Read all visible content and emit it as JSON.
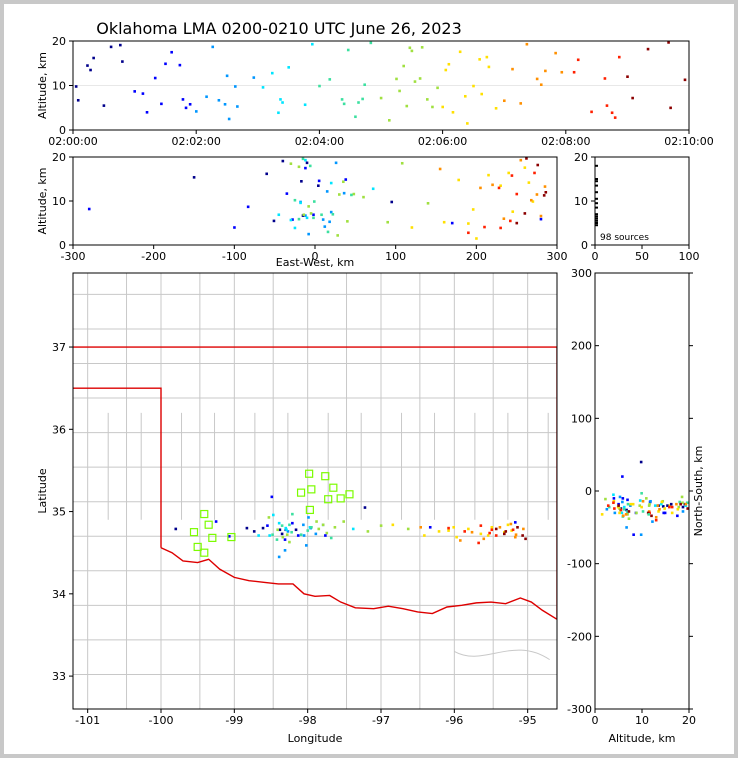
{
  "chart_data": {
    "type": "scatter",
    "title": "Oklahoma LMA 0200-0210 UTC June 26, 2023",
    "source_count_label": "98 sources",
    "colormap": [
      "#00008b",
      "#0000ff",
      "#0096ff",
      "#00e5ff",
      "#3ce0a0",
      "#a0e040",
      "#ffe000",
      "#ff9000",
      "#ff2000",
      "#8b0000"
    ],
    "station_color": "#7cfc00",
    "state_border_color": "#dd0000",
    "county_color": "#c8c8c8",
    "panels": {
      "time_altitude": {
        "xlabel": "",
        "ylabel": "Altitude, km",
        "xlim": [
          0,
          600
        ],
        "ylim": [
          0,
          20
        ],
        "xticks": [
          0,
          120,
          240,
          360,
          480,
          600
        ],
        "xtick_labels": [
          "02:00:00",
          "02:02:00",
          "02:04:00",
          "02:06:00",
          "02:08:00",
          "02:10:00"
        ],
        "yticks": [
          0,
          10,
          20
        ]
      },
      "ew_altitude": {
        "xlabel": "East-West, km",
        "ylabel": "Altitude, km",
        "xlim": [
          -300,
          300
        ],
        "ylim": [
          0,
          20
        ],
        "xticks": [
          -300,
          -200,
          -100,
          0,
          100,
          200,
          300
        ],
        "yticks": [
          0,
          10,
          20
        ]
      },
      "histogram": {
        "xlim": [
          0,
          100
        ],
        "ylim": [
          0,
          20
        ],
        "xticks": [
          0,
          50,
          100
        ],
        "yticks": [
          0,
          10,
          20
        ],
        "altitudes": [
          4.5,
          5,
          5.5,
          6,
          6.5,
          7,
          8.5,
          9.5,
          10.5,
          12,
          13.5,
          14.5,
          15,
          18
        ]
      },
      "plan": {
        "xlabel": "Longitude",
        "ylabel": "Latitude",
        "xlim": [
          -101.2,
          -94.6
        ],
        "ylim": [
          32.6,
          37.9
        ],
        "xticks": [
          -101,
          -100,
          -99,
          -98,
          -97,
          -96,
          -95
        ],
        "yticks": [
          33,
          34,
          35,
          36,
          37
        ]
      },
      "ns_altitude": {
        "xlabel": "Altitude, km",
        "ylabel": "North-South, km",
        "xlim": [
          0,
          20
        ],
        "ylim": [
          -300,
          300
        ],
        "xticks": [
          0,
          10,
          20
        ],
        "yticks": [
          -300,
          -200,
          -100,
          0,
          100,
          200,
          300
        ]
      }
    },
    "stations": [
      {
        "lon": -97.98,
        "lat": 35.46
      },
      {
        "lon": -97.76,
        "lat": 35.43
      },
      {
        "lon": -98.09,
        "lat": 35.23
      },
      {
        "lon": -97.95,
        "lat": 35.27
      },
      {
        "lon": -97.65,
        "lat": 35.29
      },
      {
        "lon": -97.43,
        "lat": 35.21
      },
      {
        "lon": -97.55,
        "lat": 35.16
      },
      {
        "lon": -97.97,
        "lat": 35.02
      },
      {
        "lon": -97.72,
        "lat": 35.15
      },
      {
        "lon": -99.41,
        "lat": 34.97
      },
      {
        "lon": -99.35,
        "lat": 34.84
      },
      {
        "lon": -99.55,
        "lat": 34.75
      },
      {
        "lon": -99.3,
        "lat": 34.68
      },
      {
        "lon": -99.5,
        "lat": 34.57
      },
      {
        "lon": -99.41,
        "lat": 34.5
      },
      {
        "lon": -99.04,
        "lat": 34.69
      }
    ],
    "sources": [
      {
        "t": 3,
        "x": 95,
        "y": 40,
        "alt": 9.8,
        "lon": -97.22,
        "lat": 35.05
      },
      {
        "t": 5,
        "x": -15,
        "y": -26,
        "alt": 6.7,
        "lon": -98.35,
        "lat": 34.73
      },
      {
        "t": 14,
        "x": -17,
        "y": -21,
        "alt": 14.5,
        "lon": -98.38,
        "lat": 34.78
      },
      {
        "t": 17,
        "x": 4,
        "y": -20,
        "alt": 13.5,
        "lon": -98.16,
        "lat": 34.78
      },
      {
        "t": 30,
        "x": -51,
        "y": -24,
        "alt": 5.5,
        "lon": -98.73,
        "lat": 34.76
      },
      {
        "t": 37,
        "x": -10,
        "y": -22,
        "alt": 18.7,
        "lon": -98.3,
        "lat": 34.78
      },
      {
        "t": 46,
        "x": -40,
        "y": -18,
        "alt": 19.1,
        "lon": -98.61,
        "lat": 34.8
      },
      {
        "t": 48,
        "x": -150,
        "y": -20,
        "alt": 15.4,
        "lon": -99.8,
        "lat": 34.79
      },
      {
        "t": 60,
        "x": -83,
        "y": -30,
        "alt": 8.7,
        "lon": -99.07,
        "lat": 34.7
      },
      {
        "t": 68,
        "x": -280,
        "y": -60,
        "alt": 8.2,
        "lon": -101.22,
        "lat": 34.44
      },
      {
        "t": 72,
        "x": -100,
        "y": -10,
        "alt": 4.0,
        "lon": -99.25,
        "lat": 34.88
      },
      {
        "t": 80,
        "x": -35,
        "y": -15,
        "alt": 11.7,
        "lon": -98.55,
        "lat": 34.83
      },
      {
        "t": 86,
        "x": 280,
        "y": -10,
        "alt": 5.9,
        "lon": -95.17,
        "lat": 34.87
      },
      {
        "t": 96,
        "x": -12,
        "y": -34,
        "alt": 17.5,
        "lon": -98.31,
        "lat": 34.66
      },
      {
        "t": 104,
        "x": 5,
        "y": -30,
        "alt": 14.6,
        "lon": -98.13,
        "lat": 34.71
      },
      {
        "t": 107,
        "x": -2,
        "y": -12,
        "alt": 6.9,
        "lon": -98.21,
        "lat": 34.86
      },
      {
        "t": 110,
        "x": 170,
        "y": -18,
        "alt": 5.0,
        "lon": -96.33,
        "lat": 34.81
      },
      {
        "t": 114,
        "x": -28,
        "y": 20,
        "alt": 5.8,
        "lon": -98.49,
        "lat": 35.18
      },
      {
        "t": 120,
        "x": 12,
        "y": -30,
        "alt": 4.2,
        "lon": -98.05,
        "lat": 34.71
      },
      {
        "t": 130,
        "x": 20,
        "y": -20,
        "alt": 7.5,
        "lon": -97.96,
        "lat": 34.8
      },
      {
        "t": 136,
        "x": 26,
        "y": -28,
        "alt": 18.7,
        "lon": -97.89,
        "lat": 34.73
      },
      {
        "t": 142,
        "x": -12,
        "y": -50,
        "alt": 6.7,
        "lon": -98.31,
        "lat": 34.53
      },
      {
        "t": 148,
        "x": 10,
        "y": -15,
        "alt": 5.8,
        "lon": -98.06,
        "lat": 34.84
      },
      {
        "t": 150,
        "x": 15,
        "y": -42,
        "alt": 12.2,
        "lon": -98.02,
        "lat": 34.59
      },
      {
        "t": 152,
        "x": -8,
        "y": -25,
        "alt": 2.5,
        "lon": -98.27,
        "lat": 34.76
      },
      {
        "t": 158,
        "x": -18,
        "y": -60,
        "alt": 9.8,
        "lon": -98.39,
        "lat": 34.45
      },
      {
        "t": 176,
        "x": 36,
        "y": -14,
        "alt": 11.8,
        "lon": -97.79,
        "lat": 34.84
      },
      {
        "t": 200,
        "x": -25,
        "y": -5,
        "alt": 3.9,
        "lon": -98.47,
        "lat": 34.96
      },
      {
        "t": 202,
        "x": -45,
        "y": -30,
        "alt": 6.9,
        "lon": -98.67,
        "lat": 34.71
      },
      {
        "t": 204,
        "x": -10,
        "y": -22,
        "alt": 6.2,
        "lon": -98.29,
        "lat": 34.78
      },
      {
        "t": 210,
        "x": 20,
        "y": -18,
        "alt": 14.1,
        "lon": -97.97,
        "lat": 34.81
      },
      {
        "t": 226,
        "x": -30,
        "y": -30,
        "alt": 5.7,
        "lon": -98.52,
        "lat": 34.71
      },
      {
        "t": 233,
        "x": -12,
        "y": -20,
        "alt": 19.3,
        "lon": -98.3,
        "lat": 34.8
      },
      {
        "t": 262,
        "x": 8,
        "y": -28,
        "alt": 6.9,
        "lon": -98.09,
        "lat": 34.72
      },
      {
        "t": 264,
        "x": -20,
        "y": -35,
        "alt": 5.9,
        "lon": -98.42,
        "lat": 34.66
      },
      {
        "t": 268,
        "x": -6,
        "y": -15,
        "alt": 18.0,
        "lon": -98.25,
        "lat": 34.84
      },
      {
        "t": 275,
        "x": 16,
        "y": -22,
        "alt": 3.0,
        "lon": -98.0,
        "lat": 34.77
      },
      {
        "t": 278,
        "x": -2,
        "y": -25,
        "alt": 6.2,
        "lon": -98.22,
        "lat": 34.75
      },
      {
        "t": 282,
        "x": 22,
        "y": -18,
        "alt": 7.0,
        "lon": -97.95,
        "lat": 34.81
      },
      {
        "t": 284,
        "x": -25,
        "y": -28,
        "alt": 10.2,
        "lon": -98.48,
        "lat": 34.72
      },
      {
        "t": 290,
        "x": -15,
        "y": -16,
        "alt": 19.6,
        "lon": -98.35,
        "lat": 34.83
      },
      {
        "t": 315,
        "x": 30,
        "y": -20,
        "alt": 11.5,
        "lon": -97.85,
        "lat": 34.79
      },
      {
        "t": 318,
        "x": -8,
        "y": -30,
        "alt": 8.8,
        "lon": -98.28,
        "lat": 34.72
      },
      {
        "t": 322,
        "x": 35,
        "y": -14,
        "alt": 14.4,
        "lon": -97.79,
        "lat": 34.84
      },
      {
        "t": 325,
        "x": 40,
        "y": -26,
        "alt": 5.4,
        "lon": -97.74,
        "lat": 34.74
      },
      {
        "t": 328,
        "x": -30,
        "y": -8,
        "alt": 18.5,
        "lon": -98.53,
        "lat": 34.93
      },
      {
        "t": 330,
        "x": -20,
        "y": -22,
        "alt": 17.8,
        "lon": -98.41,
        "lat": 34.78
      },
      {
        "t": 333,
        "x": 60,
        "y": -10,
        "alt": 10.9,
        "lon": -97.51,
        "lat": 34.88
      },
      {
        "t": 338,
        "x": 48,
        "y": -18,
        "alt": 11.6,
        "lon": -97.63,
        "lat": 34.81
      },
      {
        "t": 345,
        "x": -14,
        "y": -32,
        "alt": 6.9,
        "lon": -98.34,
        "lat": 34.69
      },
      {
        "t": 350,
        "x": 90,
        "y": -24,
        "alt": 5.2,
        "lon": -97.18,
        "lat": 34.76
      },
      {
        "t": 355,
        "x": 140,
        "y": -20,
        "alt": 9.5,
        "lon": -96.63,
        "lat": 34.79
      },
      {
        "t": 360,
        "x": 160,
        "y": -30,
        "alt": 5.2,
        "lon": -96.41,
        "lat": 34.71
      },
      {
        "t": 363,
        "x": 230,
        "y": -28,
        "alt": 13.5,
        "lon": -95.64,
        "lat": 34.73
      },
      {
        "t": 370,
        "x": 120,
        "y": -14,
        "alt": 4.0,
        "lon": -96.84,
        "lat": 34.84
      },
      {
        "t": 377,
        "x": 260,
        "y": -25,
        "alt": 17.6,
        "lon": -95.32,
        "lat": 34.75
      },
      {
        "t": 382,
        "x": 245,
        "y": -18,
        "alt": 7.6,
        "lon": -95.49,
        "lat": 34.81
      },
      {
        "t": 384,
        "x": 200,
        "y": -32,
        "alt": 1.5,
        "lon": -95.97,
        "lat": 34.69
      },
      {
        "t": 390,
        "x": 270,
        "y": -22,
        "alt": 9.9,
        "lon": -95.22,
        "lat": 34.77
      },
      {
        "t": 396,
        "x": 215,
        "y": -20,
        "alt": 15.9,
        "lon": -95.81,
        "lat": 34.79
      },
      {
        "t": 403,
        "x": 240,
        "y": -30,
        "alt": 16.4,
        "lon": -95.54,
        "lat": 34.71
      },
      {
        "t": 405,
        "x": 265,
        "y": -15,
        "alt": 14.2,
        "lon": -95.27,
        "lat": 34.84
      },
      {
        "t": 412,
        "x": 190,
        "y": -22,
        "alt": 4.9,
        "lon": -96.08,
        "lat": 34.77
      },
      {
        "t": 420,
        "x": 280,
        "y": -32,
        "alt": 6.6,
        "lon": -95.17,
        "lat": 34.69
      },
      {
        "t": 428,
        "x": 220,
        "y": -25,
        "alt": 13.7,
        "lon": -95.76,
        "lat": 34.75
      },
      {
        "t": 442,
        "x": 255,
        "y": -18,
        "alt": 19.3,
        "lon": -95.38,
        "lat": 34.81
      },
      {
        "t": 452,
        "x": 275,
        "y": -28,
        "alt": 11.5,
        "lon": -95.16,
        "lat": 34.72
      },
      {
        "t": 460,
        "x": 285,
        "y": -20,
        "alt": 13.3,
        "lon": -95.06,
        "lat": 34.79
      },
      {
        "t": 470,
        "x": 155,
        "y": -18,
        "alt": 17.3,
        "lon": -96.46,
        "lat": 34.81
      },
      {
        "t": 476,
        "x": 205,
        "y": -36,
        "alt": 13.0,
        "lon": -95.92,
        "lat": 34.65
      },
      {
        "t": 488,
        "x": 228,
        "y": -40,
        "alt": 13.0,
        "lon": -95.67,
        "lat": 34.62
      },
      {
        "t": 505,
        "x": 210,
        "y": -24,
        "alt": 4.1,
        "lon": -95.86,
        "lat": 34.76
      },
      {
        "t": 518,
        "x": 250,
        "y": -30,
        "alt": 11.6,
        "lon": -95.43,
        "lat": 34.71
      },
      {
        "t": 520,
        "x": 242,
        "y": -26,
        "alt": 5.5,
        "lon": -95.52,
        "lat": 34.74
      },
      {
        "t": 525,
        "x": 230,
        "y": -16,
        "alt": 3.9,
        "lon": -95.64,
        "lat": 34.83
      },
      {
        "t": 528,
        "x": 190,
        "y": -20,
        "alt": 2.8,
        "lon": -96.08,
        "lat": 34.8
      },
      {
        "t": 532,
        "x": 272,
        "y": -22,
        "alt": 16.4,
        "lon": -95.2,
        "lat": 34.78
      },
      {
        "t": 545,
        "x": 260,
        "y": -28,
        "alt": 7.2,
        "lon": -95.32,
        "lat": 34.73
      },
      {
        "t": 580,
        "x": 262,
        "y": -24,
        "alt": 19.7,
        "lon": -95.3,
        "lat": 34.76
      },
      {
        "t": 582,
        "x": 250,
        "y": -20,
        "alt": 5.0,
        "lon": -95.43,
        "lat": 34.79
      },
      {
        "t": 596,
        "x": 284,
        "y": -30,
        "alt": 11.3,
        "lon": -95.07,
        "lat": 34.71
      },
      {
        "t": 240,
        "x": -1,
        "y": -3,
        "alt": 9.9,
        "lon": -98.21,
        "lat": 34.97
      },
      {
        "t": 160,
        "x": 18,
        "y": -8,
        "alt": 5.3,
        "lon": -97.99,
        "lat": 34.93
      },
      {
        "t": 185,
        "x": -18,
        "y": -13,
        "alt": 9.6,
        "lon": -98.39,
        "lat": 34.86
      },
      {
        "t": 250,
        "x": 45,
        "y": -32,
        "alt": 11.4,
        "lon": -97.68,
        "lat": 34.68
      },
      {
        "t": 300,
        "x": -5,
        "y": -38,
        "alt": 7.2,
        "lon": -98.25,
        "lat": 34.63
      },
      {
        "t": 308,
        "x": 28,
        "y": -11,
        "alt": 2.2,
        "lon": -97.88,
        "lat": 34.88
      },
      {
        "t": 340,
        "x": 108,
        "y": -16,
        "alt": 18.6,
        "lon": -97.0,
        "lat": 34.83
      },
      {
        "t": 366,
        "x": 178,
        "y": -24,
        "alt": 14.8,
        "lon": -96.21,
        "lat": 34.76
      },
      {
        "t": 398,
        "x": 196,
        "y": -18,
        "alt": 8.1,
        "lon": -96.01,
        "lat": 34.81
      },
      {
        "t": 436,
        "x": 234,
        "y": -34,
        "alt": 6.0,
        "lon": -95.6,
        "lat": 34.67
      },
      {
        "t": 456,
        "x": 268,
        "y": -14,
        "alt": 10.2,
        "lon": -95.23,
        "lat": 34.85
      },
      {
        "t": 492,
        "x": 244,
        "y": -22,
        "alt": 15.8,
        "lon": -95.49,
        "lat": 34.78
      },
      {
        "t": 540,
        "x": 286,
        "y": -34,
        "alt": 12.0,
        "lon": -95.03,
        "lat": 34.67
      },
      {
        "t": 560,
        "x": 276,
        "y": -18,
        "alt": 18.2,
        "lon": -95.14,
        "lat": 34.81
      },
      {
        "t": 20,
        "x": -60,
        "y": -18,
        "alt": 16.2,
        "lon": -98.83,
        "lat": 34.8
      },
      {
        "t": 90,
        "x": 38,
        "y": -30,
        "alt": 14.9,
        "lon": -97.76,
        "lat": 34.71
      },
      {
        "t": 194,
        "x": 72,
        "y": -20,
        "alt": 12.8,
        "lon": -97.38,
        "lat": 34.79
      }
    ]
  }
}
